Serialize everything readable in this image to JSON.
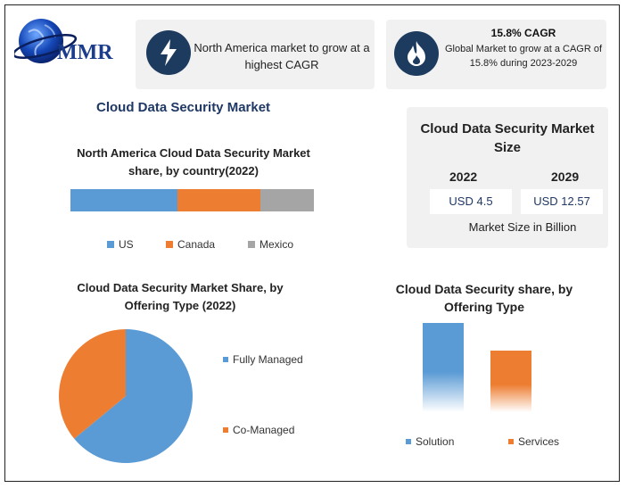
{
  "logo": {
    "text": "MMR"
  },
  "colors": {
    "us": "#5b9bd5",
    "canada": "#ed7d31",
    "mexico": "#a5a5a5",
    "icon_bg": "#1d3b5e",
    "title": "#1f3864"
  },
  "card_na": {
    "icon": "lightning-icon",
    "text": "North America market to grow at a highest CAGR"
  },
  "card_cagr": {
    "icon": "flame-icon",
    "title": "15.8% CAGR",
    "text": "Global Market to grow at a CAGR of 15.8% during 2023-2029"
  },
  "main_title": "Cloud Data Security Market",
  "market_size": {
    "title": "Cloud Data Security Market Size",
    "year1": "2022",
    "year2": "2029",
    "value1": "USD 4.5",
    "value2": "USD 12.57",
    "unit": "Market Size in Billion"
  },
  "chart_data": [
    {
      "type": "bar",
      "title": "North America Cloud Data Security Market share, by country(2022)",
      "series": [
        {
          "name": "US",
          "values": [
            44
          ]
        },
        {
          "name": "Canada",
          "values": [
            34
          ]
        },
        {
          "name": "Mexico",
          "values": [
            22
          ]
        }
      ],
      "stacked": true,
      "orientation": "horizontal"
    },
    {
      "type": "pie",
      "title": "Cloud Data Security Market Share, by Offering Type (2022)",
      "labels": [
        "Fully Managed",
        "Co-Managed"
      ],
      "values": [
        64,
        36
      ],
      "colors": [
        "#5b9bd5",
        "#ed7d31"
      ]
    },
    {
      "type": "bar",
      "title": "Cloud Data Security share, by Offering Type",
      "categories": [
        "Solution",
        "Services"
      ],
      "values": [
        80,
        55
      ],
      "colors": [
        "#5b9bd5",
        "#ed7d31"
      ]
    }
  ]
}
